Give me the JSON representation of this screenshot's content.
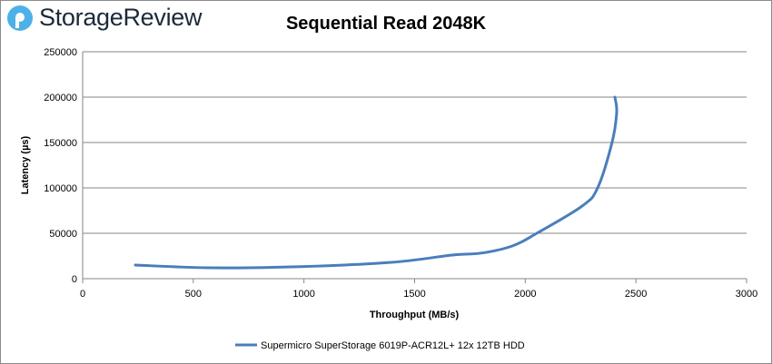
{
  "brand": {
    "name": "StorageReview",
    "accent": "#4db1e8"
  },
  "chart_data": {
    "type": "line",
    "title": "Sequential Read 2048K",
    "xlabel": "Throughput (MB/s)",
    "ylabel": "Latency (µs)",
    "xlim": [
      0,
      3000
    ],
    "ylim": [
      0,
      250000
    ],
    "xticks": [
      0,
      500,
      1000,
      1500,
      2000,
      2500,
      3000
    ],
    "yticks": [
      0,
      50000,
      100000,
      150000,
      200000,
      250000
    ],
    "grid": "horizontal",
    "legend_position": "bottom",
    "series": [
      {
        "name": "Supermicro SuperStorage 6019P-ACR12L+ 12x 12TB HDD",
        "color": "#4a7ebb",
        "points": [
          [
            238,
            15000
          ],
          [
            575,
            12000
          ],
          [
            985,
            13300
          ],
          [
            1395,
            18000
          ],
          [
            1670,
            26000
          ],
          [
            1805,
            28300
          ],
          [
            1941,
            36000
          ],
          [
            2052,
            50000
          ],
          [
            2257,
            80000
          ],
          [
            2327,
            100000
          ],
          [
            2392,
            150000
          ],
          [
            2413,
            183000
          ],
          [
            2405,
            200000
          ]
        ]
      }
    ]
  }
}
